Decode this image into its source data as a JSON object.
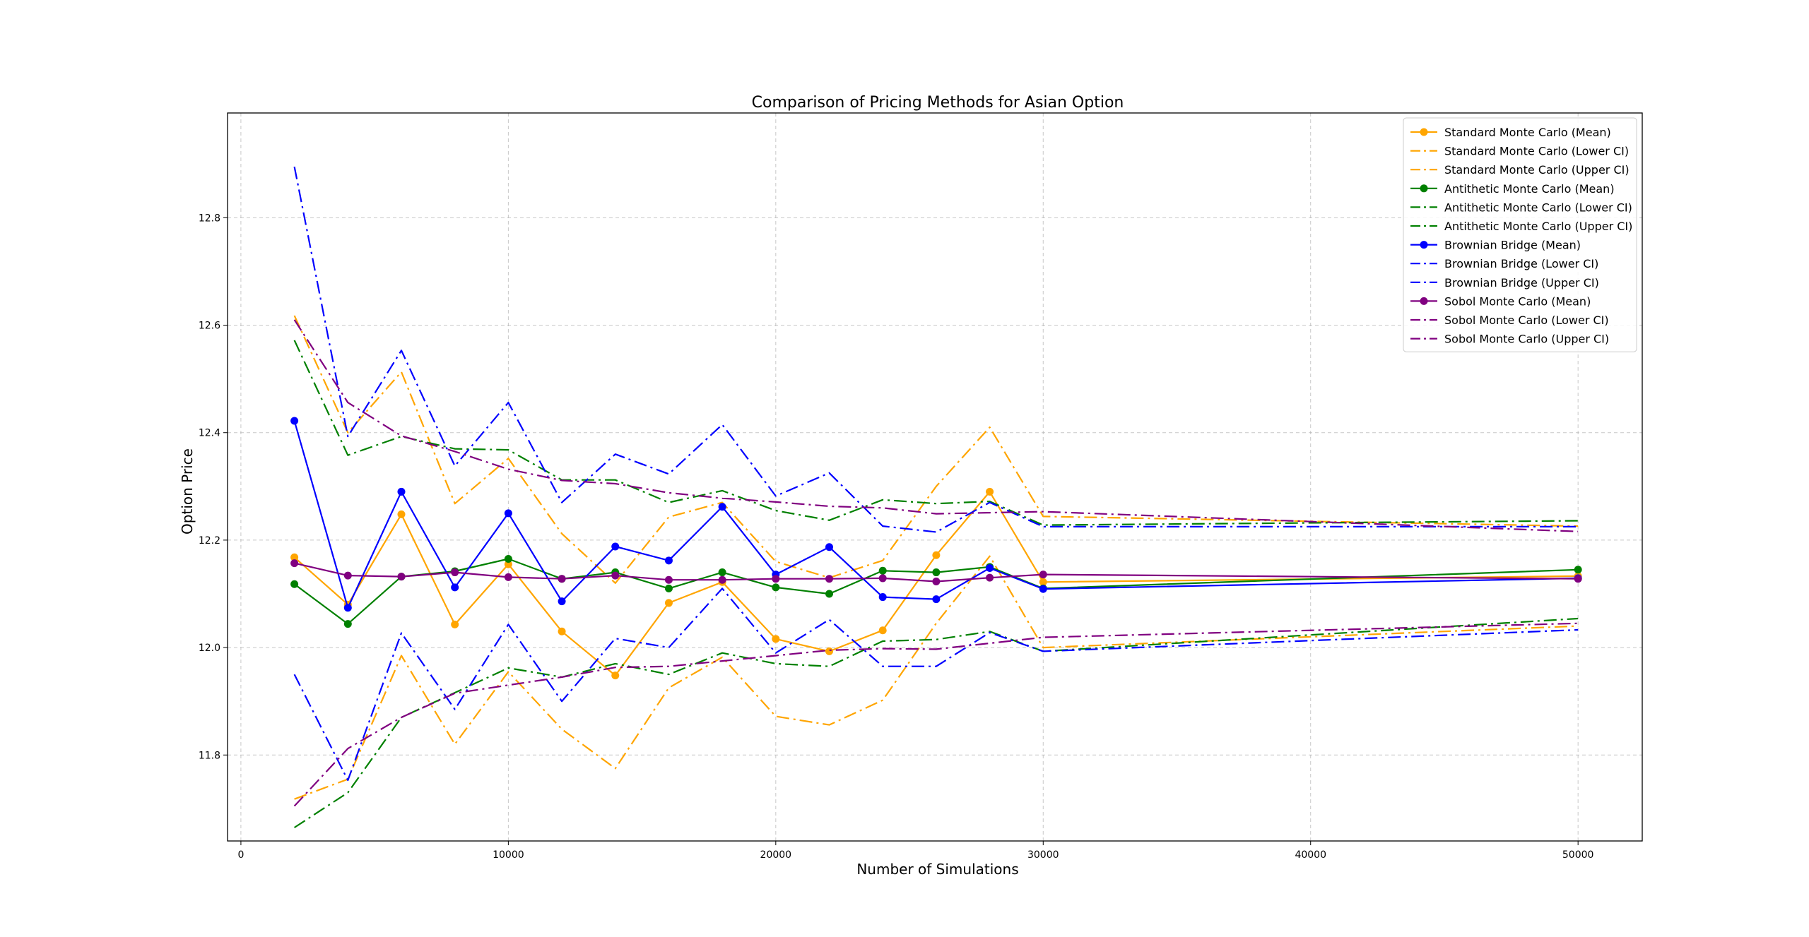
{
  "chart_data": {
    "type": "line",
    "title": "Comparison of Pricing Methods for Asian Option",
    "xlabel": "Number of Simulations",
    "ylabel": "Option Price",
    "xlim": [
      -500,
      52400
    ],
    "ylim": [
      11.64,
      12.995
    ],
    "xticks": [
      0,
      10000,
      20000,
      30000,
      40000,
      50000
    ],
    "yticks": [
      11.8,
      12.0,
      12.2,
      12.4,
      12.6,
      12.8
    ],
    "grid": true,
    "legend_position": "top-right",
    "x": [
      2000,
      4000,
      6000,
      8000,
      10000,
      12000,
      14000,
      16000,
      18000,
      20000,
      22000,
      24000,
      26000,
      28000,
      30000,
      50000
    ],
    "series": [
      {
        "name": "Standard Monte Carlo (Mean)",
        "color": "#FFA500",
        "style": "solid",
        "marker": true,
        "values": [
          12.168,
          12.08,
          12.248,
          12.043,
          12.155,
          12.03,
          11.948,
          12.083,
          12.122,
          12.016,
          11.993,
          12.032,
          12.172,
          12.29,
          12.122,
          12.133
        ]
      },
      {
        "name": "Standard Monte Carlo (Lower CI)",
        "color": "#FFA500",
        "style": "dashdot",
        "marker": false,
        "values": [
          11.718,
          11.755,
          11.985,
          11.82,
          11.955,
          11.848,
          11.775,
          11.925,
          11.982,
          11.872,
          11.856,
          11.902,
          12.045,
          12.17,
          12.0,
          12.04
        ]
      },
      {
        "name": "Standard Monte Carlo (Upper CI)",
        "color": "#FFA500",
        "style": "dashdot",
        "marker": false,
        "values": [
          12.618,
          12.4,
          12.513,
          12.268,
          12.352,
          12.212,
          12.12,
          12.243,
          12.27,
          12.16,
          12.13,
          12.162,
          12.3,
          12.41,
          12.244,
          12.226
        ]
      },
      {
        "name": "Antithetic Monte Carlo (Mean)",
        "color": "#008000",
        "style": "solid",
        "marker": true,
        "values": [
          12.118,
          12.044,
          12.132,
          12.142,
          12.165,
          12.128,
          12.14,
          12.11,
          12.14,
          12.112,
          12.1,
          12.143,
          12.14,
          12.15,
          12.11,
          12.145
        ]
      },
      {
        "name": "Antithetic Monte Carlo (Lower CI)",
        "color": "#008000",
        "style": "dashdot",
        "marker": false,
        "values": [
          11.665,
          11.73,
          11.87,
          11.916,
          11.962,
          11.945,
          11.97,
          11.95,
          11.99,
          11.97,
          11.965,
          12.012,
          12.015,
          12.03,
          11.993,
          12.054
        ]
      },
      {
        "name": "Antithetic Monte Carlo (Upper CI)",
        "color": "#008000",
        "style": "dashdot",
        "marker": false,
        "values": [
          12.572,
          12.358,
          12.393,
          12.37,
          12.368,
          12.312,
          12.312,
          12.27,
          12.292,
          12.255,
          12.237,
          12.275,
          12.268,
          12.272,
          12.228,
          12.236
        ]
      },
      {
        "name": "Brownian Bridge (Mean)",
        "color": "#0000FF",
        "style": "solid",
        "marker": true,
        "values": [
          12.422,
          12.074,
          12.29,
          12.112,
          12.25,
          12.086,
          12.188,
          12.162,
          12.262,
          12.136,
          12.187,
          12.094,
          12.09,
          12.148,
          12.109,
          12.129
        ]
      },
      {
        "name": "Brownian Bridge (Lower CI)",
        "color": "#0000FF",
        "style": "dashdot",
        "marker": false,
        "values": [
          11.95,
          11.753,
          12.027,
          11.885,
          12.043,
          11.9,
          12.017,
          12.0,
          12.11,
          11.99,
          12.052,
          11.965,
          11.965,
          12.028,
          11.993,
          12.033
        ]
      },
      {
        "name": "Brownian Bridge (Upper CI)",
        "color": "#0000FF",
        "style": "dashdot",
        "marker": false,
        "values": [
          12.895,
          12.393,
          12.553,
          12.338,
          12.456,
          12.27,
          12.36,
          12.323,
          12.415,
          12.282,
          12.325,
          12.226,
          12.215,
          12.27,
          12.225,
          12.225
        ]
      },
      {
        "name": "Sobol Monte Carlo (Mean)",
        "color": "#800080",
        "style": "solid",
        "marker": true,
        "values": [
          12.157,
          12.134,
          12.132,
          12.14,
          12.131,
          12.128,
          12.134,
          12.126,
          12.126,
          12.128,
          12.128,
          12.129,
          12.123,
          12.13,
          12.136,
          12.128
        ]
      },
      {
        "name": "Sobol Monte Carlo (Lower CI)",
        "color": "#800080",
        "style": "dashdot",
        "marker": false,
        "values": [
          11.705,
          11.812,
          11.87,
          11.915,
          11.93,
          11.945,
          11.963,
          11.965,
          11.975,
          11.985,
          11.995,
          11.998,
          11.997,
          12.008,
          12.019,
          12.045
        ]
      },
      {
        "name": "Sobol Monte Carlo (Upper CI)",
        "color": "#800080",
        "style": "dashdot",
        "marker": false,
        "values": [
          12.61,
          12.456,
          12.394,
          12.365,
          12.332,
          12.311,
          12.305,
          12.288,
          12.278,
          12.271,
          12.263,
          12.26,
          12.249,
          12.251,
          12.253,
          12.216
        ]
      }
    ]
  }
}
